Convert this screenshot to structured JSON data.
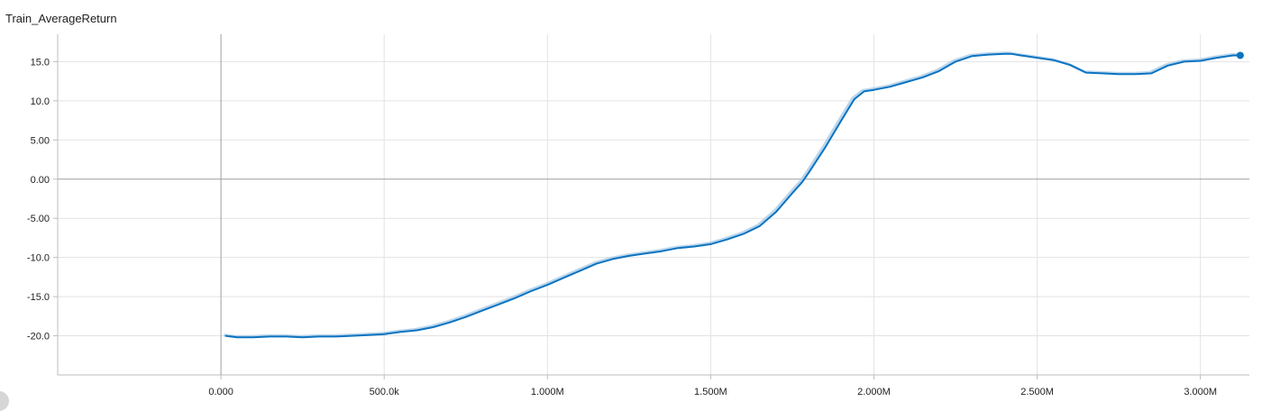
{
  "chart_data": {
    "type": "line",
    "title": "Train_AverageReturn",
    "xlabel": "",
    "ylabel": "",
    "xlim": [
      -500000,
      3150000
    ],
    "ylim": [
      -25,
      18.5
    ],
    "x_ticks": [
      {
        "value": 0,
        "label": "0.000"
      },
      {
        "value": 500000,
        "label": "500.0k"
      },
      {
        "value": 1000000,
        "label": "1.000M"
      },
      {
        "value": 1500000,
        "label": "1.500M"
      },
      {
        "value": 2000000,
        "label": "2.000M"
      },
      {
        "value": 2500000,
        "label": "2.500M"
      },
      {
        "value": 3000000,
        "label": "3.000M"
      }
    ],
    "y_ticks": [
      {
        "value": 15,
        "label": "15.0"
      },
      {
        "value": 10,
        "label": "10.0"
      },
      {
        "value": 5,
        "label": "5.00"
      },
      {
        "value": 0,
        "label": "0.00"
      },
      {
        "value": -5,
        "label": "-5.00"
      },
      {
        "value": -10,
        "label": "-10.0"
      },
      {
        "value": -15,
        "label": "-15.0"
      },
      {
        "value": -20,
        "label": "-20.0"
      }
    ],
    "grid": true,
    "colors": {
      "smoothed": "#0b73c0",
      "raw": "#a9cce8"
    },
    "series": [
      {
        "x": [
          15000,
          50000,
          100000,
          150000,
          200000,
          250000,
          300000,
          350000,
          400000,
          450000,
          500000,
          550000,
          600000,
          650000,
          700000,
          750000,
          800000,
          850000,
          900000,
          950000,
          1000000,
          1050000,
          1100000,
          1150000,
          1200000,
          1250000,
          1300000,
          1350000,
          1400000,
          1450000,
          1500000,
          1550000,
          1600000,
          1650000,
          1700000,
          1750000,
          1780000,
          1800000,
          1850000,
          1900000,
          1940000,
          1970000,
          2000000,
          2050000,
          2100000,
          2150000,
          2200000,
          2250000,
          2300000,
          2350000,
          2400000,
          2420000,
          2450000,
          2500000,
          2550000,
          2600000,
          2650000,
          2700000,
          2750000,
          2800000,
          2850000,
          2900000,
          2950000,
          3000000,
          3050000,
          3100000,
          3122000
        ],
        "values": [
          -20.0,
          -20.2,
          -20.2,
          -20.1,
          -20.1,
          -20.2,
          -20.1,
          -20.1,
          -20.0,
          -19.9,
          -19.8,
          -19.5,
          -19.3,
          -18.9,
          -18.3,
          -17.6,
          -16.8,
          -16.0,
          -15.2,
          -14.3,
          -13.5,
          -12.6,
          -11.7,
          -10.8,
          -10.2,
          -9.8,
          -9.5,
          -9.2,
          -8.8,
          -8.6,
          -8.3,
          -7.7,
          -7.0,
          -6.0,
          -4.2,
          -1.8,
          -0.4,
          0.8,
          4.0,
          7.5,
          10.2,
          11.2,
          11.4,
          11.8,
          12.4,
          13.0,
          13.8,
          15.0,
          15.7,
          15.9,
          16.0,
          16.0,
          15.8,
          15.5,
          15.2,
          14.6,
          13.6,
          13.5,
          13.4,
          13.4,
          13.5,
          14.5,
          15.0,
          15.1,
          15.5,
          15.8,
          15.8
        ]
      }
    ]
  }
}
